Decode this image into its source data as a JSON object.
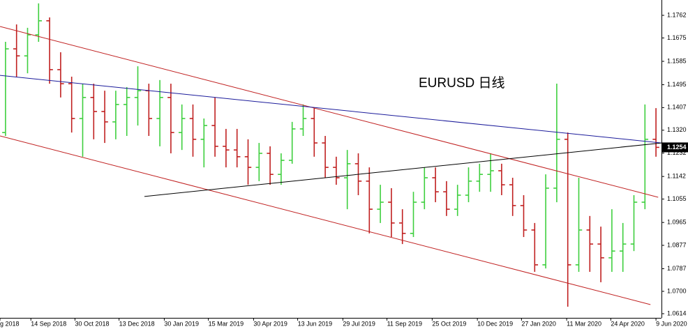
{
  "chart_data": {
    "type": "ohlc",
    "annotation": "EURUSD 日线",
    "up_color": "#3ecf3e",
    "down_color": "#c02020",
    "open": [
      1.1311,
      1.1633,
      1.1606,
      1.1687,
      1.1741,
      1.1553,
      1.1499,
      1.1365,
      1.1446,
      1.1392,
      1.1352,
      1.1419,
      1.1446,
      1.1472,
      1.1365,
      1.1446,
      1.1311,
      1.1365,
      1.1285,
      1.1338,
      1.1258,
      1.1244,
      1.1218,
      1.1177,
      1.1231,
      1.115,
      1.1204,
      1.1325,
      1.1365,
      1.1271,
      1.1177,
      1.1137,
      1.1191,
      1.1124,
      1.1016,
      1.1043,
      1.0963,
      1.0923,
      1.1043,
      1.1137,
      1.1083,
      1.1016,
      1.107,
      1.1124,
      1.115,
      1.1164,
      1.111,
      1.103,
      1.0936,
      1.0802,
      1.1097,
      1.1285,
      1.0802,
      1.0936,
      1.0882,
      1.0829,
      1.0855,
      1.0882,
      1.1043,
      1.1285
    ],
    "high": [
      1.166,
      1.1727,
      1.1714,
      1.1808,
      1.1754,
      1.162,
      1.1526,
      1.1499,
      1.1499,
      1.1472,
      1.1472,
      1.1486,
      1.1566,
      1.1499,
      1.1513,
      1.1499,
      1.1419,
      1.1419,
      1.1365,
      1.1446,
      1.1325,
      1.1325,
      1.1285,
      1.1271,
      1.1258,
      1.1231,
      1.1352,
      1.1419,
      1.1405,
      1.1298,
      1.1218,
      1.1244,
      1.1231,
      1.1177,
      1.111,
      1.1097,
      1.1016,
      1.1083,
      1.1177,
      1.1177,
      1.1124,
      1.111,
      1.1177,
      1.1191,
      1.1231,
      1.1191,
      1.1137,
      1.107,
      1.0963,
      1.115,
      1.1499,
      1.1311,
      1.1137,
      1.099,
      1.0949,
      1.1016,
      1.0963,
      1.107,
      1.1419,
      1.1405
    ],
    "low": [
      1.1298,
      1.1526,
      1.1539,
      1.166,
      1.1499,
      1.1446,
      1.1311,
      1.1218,
      1.1285,
      1.1271,
      1.1285,
      1.1298,
      1.1338,
      1.1298,
      1.1258,
      1.1231,
      1.1244,
      1.1218,
      1.1177,
      1.1218,
      1.1177,
      1.1177,
      1.111,
      1.1124,
      1.111,
      1.111,
      1.1191,
      1.1298,
      1.1218,
      1.1137,
      1.111,
      1.1016,
      1.107,
      1.0923,
      1.0963,
      1.0909,
      1.0882,
      1.0909,
      1.1016,
      1.1043,
      1.099,
      1.099,
      1.1043,
      1.1083,
      1.1083,
      1.107,
      1.099,
      1.0909,
      1.0775,
      1.0788,
      1.1043,
      1.0641,
      1.0775,
      1.0775,
      1.0735,
      1.0775,
      1.0775,
      1.0855,
      1.1016,
      1.1218
    ],
    "close": [
      1.1633,
      1.1606,
      1.1687,
      1.1741,
      1.1553,
      1.1499,
      1.1365,
      1.1446,
      1.1392,
      1.1352,
      1.1419,
      1.1446,
      1.1472,
      1.1365,
      1.1446,
      1.1311,
      1.1365,
      1.1285,
      1.1338,
      1.1258,
      1.1244,
      1.1218,
      1.1177,
      1.1231,
      1.115,
      1.1204,
      1.1325,
      1.1365,
      1.1271,
      1.1177,
      1.1137,
      1.1191,
      1.1124,
      1.1016,
      1.1043,
      1.0963,
      1.0923,
      1.1043,
      1.1137,
      1.1083,
      1.1016,
      1.107,
      1.1124,
      1.115,
      1.1164,
      1.111,
      1.103,
      1.0936,
      1.0802,
      1.1097,
      1.1285,
      1.0802,
      1.0936,
      1.0882,
      1.0829,
      1.0855,
      1.0882,
      1.1043,
      1.1285,
      1.1254
    ],
    "current_price": 1.1254,
    "xlim": [
      0,
      60
    ],
    "ylim": [
      1.0598,
      1.1821
    ],
    "xticks": [
      {
        "value": 0,
        "label": "g 2018"
      },
      {
        "value": 2.8,
        "label": "14 Sep 2018"
      },
      {
        "value": 6.8,
        "label": "30 Oct 2018"
      },
      {
        "value": 10.8,
        "label": "13 Dec 2018"
      },
      {
        "value": 14.9,
        "label": "30 Jan 2019"
      },
      {
        "value": 18.9,
        "label": "15 Mar 2019"
      },
      {
        "value": 23.0,
        "label": "30 Apr 2019"
      },
      {
        "value": 27.0,
        "label": "13 Jun 2019"
      },
      {
        "value": 31.1,
        "label": "29 Jul 2019"
      },
      {
        "value": 35.1,
        "label": "11 Sep 2019"
      },
      {
        "value": 39.2,
        "label": "25 Oct 2019"
      },
      {
        "value": 43.3,
        "label": "10 Dec 2019"
      },
      {
        "value": 47.3,
        "label": "27 Jan 2020"
      },
      {
        "value": 51.4,
        "label": "11 Mar 2020"
      },
      {
        "value": 55.4,
        "label": "24 Apr 2020"
      },
      {
        "value": 59.5,
        "label": "9 Jun 2020"
      }
    ],
    "yticks": [
      1.1762,
      1.1675,
      1.1585,
      1.1495,
      1.1407,
      {
        "value": 1.132,
        "label": "1.1320"
      },
      1.1232,
      1.1142,
      1.1055,
      1.0965,
      1.0877,
      1.0787,
      {
        "value": 1.07,
        "label": "1.0700"
      },
      1.0614
    ],
    "trend_lines": [
      {
        "color": "#c02020",
        "x": [
          0,
          59.7
        ],
        "y": [
          1.1719,
          1.1062
        ]
      },
      {
        "color": "#c02020",
        "x": [
          0,
          59.0
        ],
        "y": [
          1.1298,
          1.0649
        ]
      },
      {
        "color": "#1a1a9a",
        "x": [
          0,
          60
        ],
        "y": [
          1.1531,
          1.1271
        ]
      },
      {
        "color": "#000000",
        "x": [
          13.1,
          60
        ],
        "y": [
          1.1065,
          1.1271
        ]
      }
    ]
  }
}
